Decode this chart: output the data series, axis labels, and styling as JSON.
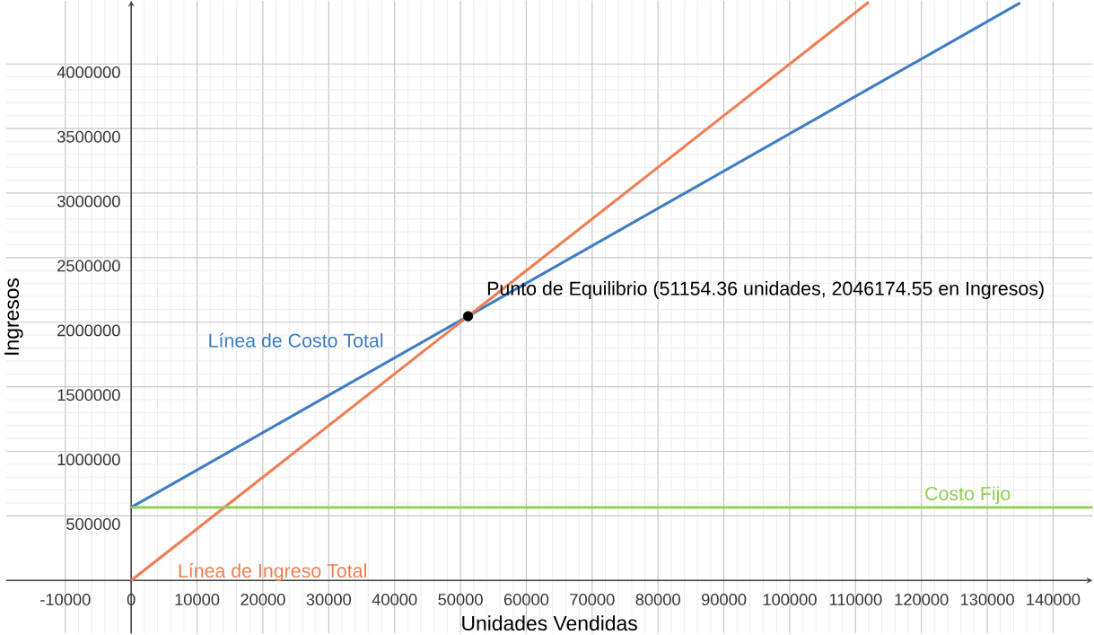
{
  "chart_data": {
    "type": "line",
    "xlabel": "Unidades Vendidas",
    "ylabel": "Ingresos",
    "xlim": [
      -19000,
      146000
    ],
    "ylim": [
      -410000,
      4490000
    ],
    "xticks": [
      -10000,
      0,
      10000,
      20000,
      30000,
      40000,
      50000,
      60000,
      70000,
      80000,
      90000,
      100000,
      110000,
      120000,
      130000,
      140000
    ],
    "yticks": [
      500000,
      1000000,
      1500000,
      2000000,
      2500000,
      3000000,
      3500000,
      4000000
    ],
    "grid": true,
    "series": [
      {
        "name": "Línea de Costo Total",
        "color": "#3d7cc4",
        "x": [
          0,
          135000
        ],
        "values": [
          566000,
          4473000
        ]
      },
      {
        "name": "Línea de Ingreso Total",
        "color": "#f07c52",
        "x": [
          0,
          112000
        ],
        "values": [
          0,
          4480000
        ]
      },
      {
        "name": "Costo Fijo",
        "color": "#8fcf52",
        "x": [
          0,
          146000
        ],
        "values": [
          566000,
          566000
        ]
      },
      {
        "type": "scatter",
        "color": "#000000",
        "marker": "circle",
        "x": [
          51154.36
        ],
        "values": [
          2046174.55
        ]
      }
    ],
    "annotations": [
      {
        "text": "Punto de Equilibrio (51154.36 unidades, 2046174.55 en Ingresos)",
        "x": 51154.36,
        "y": 2046174.55
      }
    ]
  }
}
